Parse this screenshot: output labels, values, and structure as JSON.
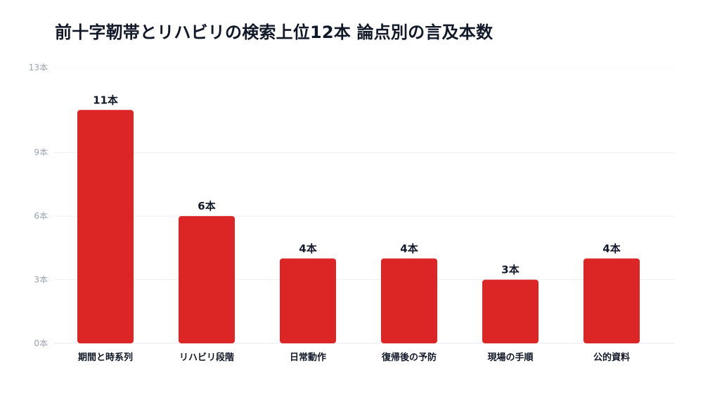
{
  "chart_data": {
    "type": "bar",
    "title": "前十字靭帯とリハビリの検索上位12本 論点別の言及本数",
    "categories": [
      "期間と時系列",
      "リハビリ段階",
      "日常動作",
      "復帰後の予防",
      "現場の手順",
      "公的資料"
    ],
    "values": [
      11,
      6,
      4,
      4,
      3,
      4
    ],
    "data_labels": [
      "11本",
      "6本",
      "4本",
      "4本",
      "3本",
      "4本"
    ],
    "y_ticks": [
      0,
      3,
      6,
      9,
      13
    ],
    "y_tick_labels": [
      "0本",
      "3本",
      "6本",
      "9本",
      "13本"
    ],
    "ylim": [
      0,
      13
    ],
    "xlabel": "",
    "ylabel": "",
    "grid": true,
    "bar_color": "#dc2626"
  }
}
